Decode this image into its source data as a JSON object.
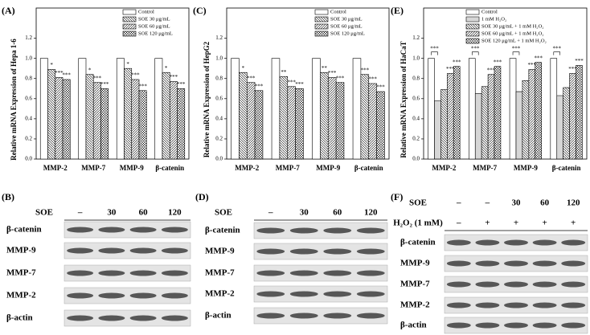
{
  "chart_data": [
    {
      "type": "bar",
      "panel": "(A)",
      "ylabel": "Relative mRNA Expression of Hepa 1-6",
      "categories": [
        "MMP-2",
        "MMP-7",
        "MMP-9",
        "β-catenin"
      ],
      "series": [
        {
          "name": "Control",
          "color": "#000000",
          "pattern": "none",
          "values": [
            1.0,
            1.0,
            1.0,
            1.0
          ]
        },
        {
          "name": "SOE 30 μg/mL",
          "color": "#000000",
          "pattern": "back-diagonal",
          "values": [
            0.89,
            0.84,
            0.9,
            0.86
          ],
          "sig": [
            "*",
            "*",
            "*",
            "*"
          ]
        },
        {
          "name": "SOE 60 μg/mL",
          "color": "#000000",
          "pattern": "diagonal",
          "values": [
            0.81,
            0.76,
            0.79,
            0.77
          ],
          "sig": [
            "***",
            "***",
            "***",
            "***"
          ]
        },
        {
          "name": "SOE 120 μg/mL",
          "color": "#000000",
          "pattern": "cross",
          "values": [
            0.79,
            0.7,
            0.68,
            0.7
          ],
          "sig": [
            "***",
            "***",
            "***",
            "***"
          ]
        }
      ],
      "ylim": [
        0,
        1.5
      ],
      "yticks": [
        {
          "value": 0,
          "label": "0.0"
        },
        {
          "value": 0.2,
          "label": "0.2"
        },
        {
          "value": 0.4,
          "label": "0.4"
        },
        {
          "value": 0.6,
          "label": "0.6"
        },
        {
          "value": 0.8,
          "label": "0.8"
        },
        {
          "value": 1.0,
          "label": "1.0"
        },
        {
          "value": 1.2,
          "label": "1.2"
        }
      ],
      "legend": "upper right"
    },
    {
      "type": "bar",
      "panel": "(C)",
      "ylabel": "Relative mRNA Expression of HepG2",
      "categories": [
        "MMP-2",
        "MMP-7",
        "MMP-9",
        "β-catenin"
      ],
      "series": [
        {
          "name": "Control",
          "color": "#000000",
          "pattern": "none",
          "values": [
            1.0,
            1.0,
            1.0,
            1.0
          ]
        },
        {
          "name": "SOE 30 μg/mL",
          "color": "#000000",
          "pattern": "back-diagonal",
          "values": [
            0.86,
            0.82,
            0.86,
            0.84
          ],
          "sig": [
            "*",
            "**",
            "**",
            "***"
          ]
        },
        {
          "name": "SOE 60 μg/mL",
          "color": "#000000",
          "pattern": "diagonal",
          "values": [
            0.76,
            0.72,
            0.81,
            0.75
          ],
          "sig": [
            "***",
            "***",
            "***",
            "***"
          ]
        },
        {
          "name": "SOE 120 μg/mL",
          "color": "#000000",
          "pattern": "cross",
          "values": [
            0.68,
            0.7,
            0.76,
            0.67
          ],
          "sig": [
            "***",
            "***",
            "***",
            "***"
          ]
        }
      ],
      "ylim": [
        0,
        1.5
      ],
      "yticks": [
        {
          "value": 0,
          "label": "0.0"
        },
        {
          "value": 0.2,
          "label": "0.2"
        },
        {
          "value": 0.4,
          "label": "0.4"
        },
        {
          "value": 0.6,
          "label": "0.6"
        },
        {
          "value": 0.8,
          "label": "0.8"
        },
        {
          "value": 1.0,
          "label": "1.0"
        },
        {
          "value": 1.2,
          "label": "1.2"
        }
      ],
      "legend": "upper right"
    },
    {
      "type": "bar",
      "panel": "(E)",
      "ylabel": "Relative mRNA Expression of HaCaT",
      "categories": [
        "MMP-2",
        "MMP-7",
        "MMP-9",
        "β-catenin"
      ],
      "series": [
        {
          "name": "Control",
          "color": "#000000",
          "pattern": "none",
          "values": [
            1.0,
            1.0,
            1.0,
            1.0
          ]
        },
        {
          "name": "1 mM H₂O₂",
          "color": "#000000",
          "pattern": "horizontal",
          "values": [
            0.58,
            0.65,
            0.67,
            0.63
          ]
        },
        {
          "name": "SOE 30 μg/mL + 1 mM H₂O₂",
          "color": "#000000",
          "pattern": "back-diagonal",
          "values": [
            0.69,
            0.72,
            0.78,
            0.71
          ]
        },
        {
          "name": "SOE 60 μg/mL + 1 mM H₂O₂",
          "color": "#000000",
          "pattern": "diagonal",
          "values": [
            0.85,
            0.84,
            0.89,
            0.85
          ],
          "sig": [
            "***",
            "***",
            "***",
            "***"
          ]
        },
        {
          "name": "SOE 120 μg/mL + 1 mM H₂O₂",
          "color": "#000000",
          "pattern": "cross",
          "values": [
            0.92,
            0.92,
            0.96,
            0.93
          ],
          "sig": [
            "***",
            "***",
            "***",
            "***"
          ]
        }
      ],
      "comparison_labels": [
        "***",
        "***",
        "***",
        "***"
      ],
      "ylim": [
        0,
        1.5
      ],
      "yticks": [
        {
          "value": 0,
          "label": "0.0"
        },
        {
          "value": 0.2,
          "label": "0.2"
        },
        {
          "value": 0.4,
          "label": "0.4"
        },
        {
          "value": 0.6,
          "label": "0.6"
        },
        {
          "value": 0.8,
          "label": "0.8"
        },
        {
          "value": 1.0,
          "label": "1.0"
        },
        {
          "value": 1.2,
          "label": "1.2"
        }
      ],
      "legend": "upper right"
    }
  ],
  "blots": [
    {
      "panel": "(B)",
      "treatments": [
        {
          "label": "SOE",
          "levels": [
            "–",
            "30",
            "60",
            "120"
          ]
        }
      ],
      "proteins": [
        "β-catenin",
        "MMP-9",
        "MMP-7",
        "MMP-2",
        "β-actin"
      ]
    },
    {
      "panel": "(D)",
      "treatments": [
        {
          "label": "SOE",
          "levels": [
            "–",
            "30",
            "60",
            "120"
          ]
        }
      ],
      "proteins": [
        "β-catenin",
        "MMP-9",
        "MMP-7",
        "MMP-2",
        "β-actin"
      ]
    },
    {
      "panel": "(F)",
      "treatments": [
        {
          "label": "SOE",
          "levels": [
            "–",
            "–",
            "30",
            "60",
            "120"
          ]
        },
        {
          "label": "H₂O₂ (1 mM)",
          "levels": [
            "–",
            "+",
            "+",
            "+",
            "+"
          ]
        }
      ],
      "proteins": [
        "β-catenin",
        "MMP-9",
        "MMP-7",
        "MMP-2",
        "β-actin"
      ]
    }
  ]
}
